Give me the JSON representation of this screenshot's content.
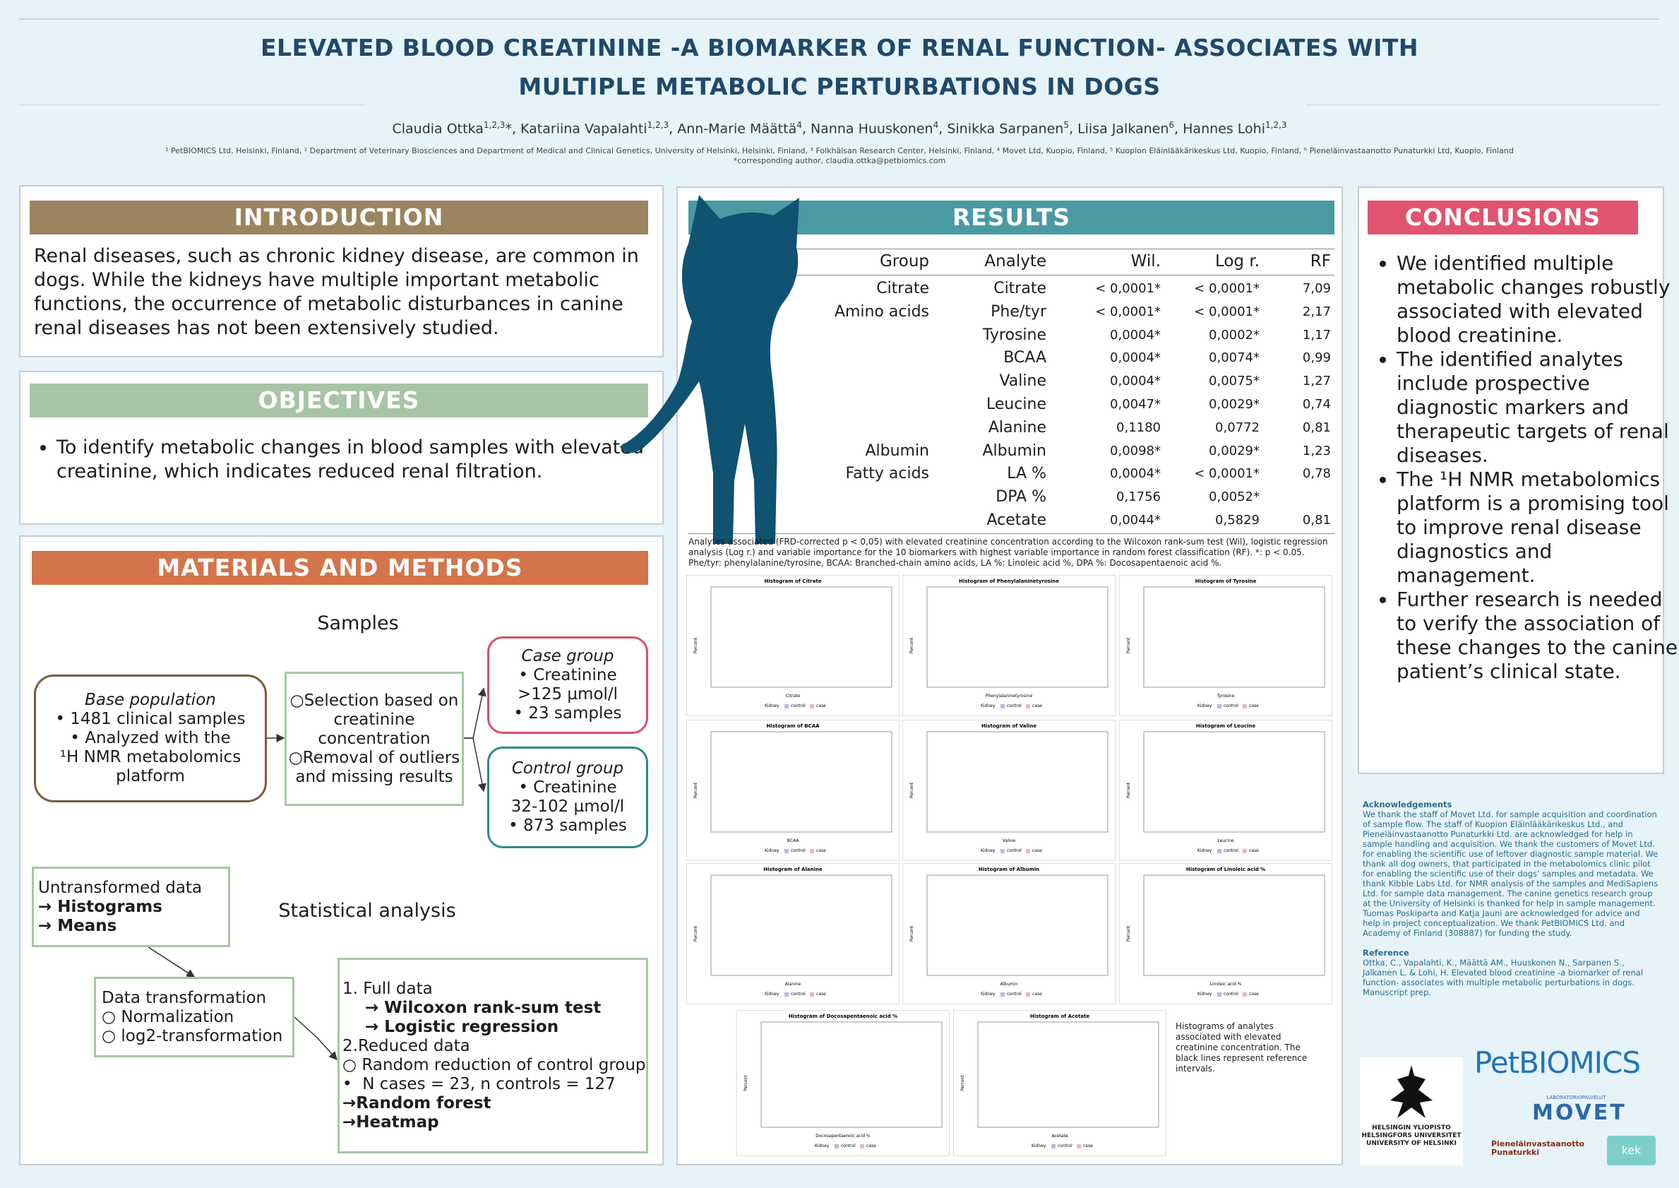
{
  "header": {
    "title_lines": [
      "ELEVATED BLOOD CREATININE -A BIOMARKER OF RENAL FUNCTION- ASSOCIATES WITH",
      "MULTIPLE METABOLIC PERTURBATIONS IN DOGS"
    ],
    "authors": [
      {
        "name": "Claudia Ottka",
        "sup": "1,2,3",
        "mark": "*"
      },
      {
        "name": "Katariina Vapalahti",
        "sup": "1,2,3"
      },
      {
        "name": "Ann-Marie Määttä",
        "sup": "4"
      },
      {
        "name": "Nanna Huuskonen",
        "sup": "4"
      },
      {
        "name": "Sinikka Sarpanen",
        "sup": "5"
      },
      {
        "name": "Liisa Jalkanen",
        "sup": "6"
      },
      {
        "name": "Hannes Lohi",
        "sup": "1,2,3"
      }
    ],
    "affiliations": "¹ PetBIOMICS Ltd, Helsinki, Finland, ² Department of Veterinary Biosciences and Department of Medical and Clinical Genetics, University of Helsinki, Helsinki, Finland, ³ Folkhälsan Research Center, Helsinki, Finland, ⁴ Movet Ltd, Kuopio, Finland, ⁵ Kuopion Eläinlääkärikeskus Ltd, Kuopio, Finland, ⁶ Pieneläinvastaanotto Punaturkki Ltd, Kuopio, Finland",
    "corresponding": "*corresponding author, claudia.ottka@petbiomics.com"
  },
  "introduction": {
    "heading": "INTRODUCTION",
    "text": "Renal diseases, such as chronic kidney disease, are common in dogs. While the kidneys have multiple important metabolic functions, the occurrence of metabolic disturbances in canine renal diseases has not been extensively studied."
  },
  "objectives": {
    "heading": "OBJECTIVES",
    "items": [
      "To identify metabolic changes in blood samples with elevated creatinine, which indicates reduced renal filtration."
    ]
  },
  "methods": {
    "heading": "MATERIALS AND METHODS",
    "samples_heading": "Samples",
    "base_population": {
      "title": "Base population",
      "lines": [
        "• 1481 clinical samples",
        "• Analyzed with the",
        "¹H NMR metabolomics",
        "platform"
      ]
    },
    "selection": {
      "lines": [
        "○Selection based on",
        "creatinine",
        "concentration",
        "○Removal of outliers",
        "and missing results"
      ]
    },
    "case_group": {
      "title": "Case group",
      "lines": [
        "• Creatinine",
        ">125 µmol/l",
        "• 23 samples"
      ]
    },
    "control_group": {
      "title": "Control group",
      "lines": [
        "• Creatinine",
        "32-102 µmol/l",
        "• 873 samples"
      ]
    },
    "statistical_heading": "Statistical analysis",
    "untransformed": {
      "lines": [
        {
          "text": "Untransformed data",
          "bold": false
        },
        {
          "text": "→ Histograms",
          "bold": true
        },
        {
          "text": "→ Means",
          "bold": true
        }
      ]
    },
    "transformation": {
      "lines": [
        "Data transformation",
        "○  Normalization",
        "○  log2-transformation"
      ]
    },
    "analysis": {
      "lines": [
        {
          "text": "1. Full data",
          "bold": false
        },
        {
          "text": "    → Wilcoxon rank-sum test",
          "bold": true
        },
        {
          "text": "    → Logistic regression",
          "bold": true
        },
        {
          "text": "2.Reduced data",
          "bold": false
        },
        {
          "text": "○ Random reduction of control group",
          "bold": false
        },
        {
          "text": "•  N cases = 23, n controls = 127",
          "bold": false
        },
        {
          "text": "→Random forest",
          "bold": true
        },
        {
          "text": "→Heatmap",
          "bold": true
        }
      ]
    }
  },
  "results": {
    "heading": "RESULTS",
    "table": {
      "columns": [
        "Group",
        "Analyte",
        "Wil.",
        "Log r.",
        "RF"
      ],
      "rows": [
        [
          "Citrate",
          "Citrate",
          "< 0,0001*",
          "< 0,0001*",
          "7,09"
        ],
        [
          "Amino acids",
          "Phe/tyr",
          "< 0,0001*",
          "< 0,0001*",
          "2,17"
        ],
        [
          null,
          "Tyrosine",
          "0,0004*",
          "0,0002*",
          "1,17"
        ],
        [
          null,
          "BCAA",
          "0,0004*",
          "0,0074*",
          "0,99"
        ],
        [
          null,
          "Valine",
          "0,0004*",
          "0,0075*",
          "1,27"
        ],
        [
          null,
          "Leucine",
          "0,0047*",
          "0,0029*",
          "0,74"
        ],
        [
          null,
          "Alanine",
          "0,1180",
          "0,0772",
          "0,81"
        ],
        [
          "Albumin",
          "Albumin",
          "0,0098*",
          "0,0029*",
          "1,23"
        ],
        [
          "Fatty acids",
          "LA %",
          "0,0004*",
          "< 0,0001*",
          "0,78"
        ],
        [
          null,
          "DPA %",
          "0,1756",
          "0,0052*",
          null
        ],
        [
          null,
          "Acetate",
          "0,0044*",
          "0,5829",
          "0,81"
        ]
      ]
    },
    "table_caption": "Analytes associated (FRD-corrected p < 0,05) with elevated creatinine concentration according to the Wilcoxon rank-sum test (Wil), logistic regression analysis (Log r.) and variable importance for the 10 biomarkers with highest variable importance in random forest classification (RF). *: p < 0.05. Phe/tyr: phenylalanine/tyrosine, BCAA: Branched-chain amino acids, LA %: Linoleic acid %, DPA %: Docosapentaenoic acid %.",
    "histogram_ylabel": "Percent",
    "histogram_legend_title": "Kidney",
    "histogram_legend": [
      "control",
      "case"
    ],
    "histograms": [
      {
        "title": "Histogram of Citrate",
        "xlabel": "Citrate"
      },
      {
        "title": "Histogram of Phenylalaninetyrosine",
        "xlabel": "Phenylalaninetyrosine"
      },
      {
        "title": "Histogram of Tyrosine",
        "xlabel": "Tyrosine"
      },
      {
        "title": "Histogram of BCAA",
        "xlabel": "BCAA"
      },
      {
        "title": "Histogram of Valine",
        "xlabel": "Valine"
      },
      {
        "title": "Histogram of Leucine",
        "xlabel": "Leucine"
      },
      {
        "title": "Histogram of Alanine",
        "xlabel": "Alanine"
      },
      {
        "title": "Histogram of Albumin",
        "xlabel": "Albumin"
      },
      {
        "title": "Histogram of Linoleic acid %",
        "xlabel": "Linoleic acid %"
      },
      {
        "title": "Histogram of Docosapentaenoic acid %",
        "xlabel": "Docosapentaenoic acid %"
      },
      {
        "title": "Histogram of Acetate",
        "xlabel": "Acetate"
      }
    ],
    "histogram_caption": "Histograms of analytes associated with elevated creatinine concentration. The black lines represent reference intervals."
  },
  "conclusions": {
    "heading": "CONCLUSIONS",
    "items": [
      "We identified multiple metabolic changes robustly associated with elevated blood creatinine.",
      "The identified analytes include prospective diagnostic markers and therapeutic targets of renal diseases.",
      "The ¹H NMR metabolomics platform is a promising tool to improve renal disease diagnostics and management.",
      "Further research is needed to verify the association of these changes to the canine patient’s clinical state."
    ]
  },
  "acknowledgements": {
    "heading": "Acknowledgements",
    "text": "We thank the staff of Movet Ltd. for sample acquisition and coordination of sample flow. The staff of Kuopion Eläinlääkärikeskus Ltd., and Pieneläinvastaanotto Punaturkki Ltd. are acknowledged for help in sample handling and acquisition. We thank the customers of Movet Ltd. for enabling the scientific use of leftover diagnostic sample material. We thank all dog owners, that participated in the metabolomics clinic pilot for enabling the scientific use of their dogs’ samples and metadata. We thank Kibble Labs Ltd. for NMR analysis of the samples and MediSapiens Ltd. for sample data management. The canine genetics research group at the University of Helsinki is thanked for help in sample management. Tuomas Poskiparta and Katja Jauni are acknowledged for advice and help in project conceptualization. We thank PetBIOMICS Ltd. and Academy of Finland (308887) for funding the study."
  },
  "reference": {
    "heading": "Reference",
    "text": "Ottka, C., Vapalahti, K., Määttä AM., Huuskonen N., Sarpanen S., Jalkanen L. & Lohi, H. Elevated blood creatinine -a biomarker of renal function- associates with multiple metabolic perturbations in dogs. Manuscript prep."
  },
  "logos": {
    "petbiomics": "PetBIOMICS",
    "helsinki": [
      "HELSINGIN YLIOPISTO",
      "HELSINGFORS UNIVERSITET",
      "UNIVERSITY OF HELSINKI"
    ],
    "movet_sub": "LABORATORIOPALVELUT",
    "movet": "MOVET",
    "punaturkki": "Pieneläinvastaanotto Punaturkki",
    "kek": "kek"
  }
}
